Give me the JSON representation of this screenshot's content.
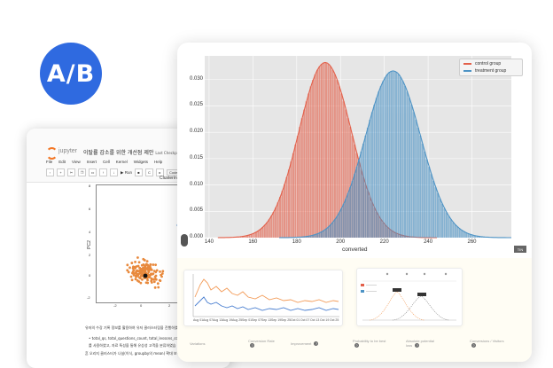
{
  "badge": {
    "text": "A/B",
    "color": "#2f6ae0"
  },
  "notebook": {
    "brand": "jupyter",
    "title": "이탈률 감소를 위한 개선점 제안",
    "checkpoint": "Last Checkpoint: 지난",
    "menu": [
      "File",
      "Edit",
      "View",
      "Insert",
      "Cell",
      "Kernel",
      "Widgets",
      "Help"
    ],
    "run_label": "Run",
    "cell_type": "Code",
    "plot_title": "Clusterin",
    "y_axis_label": "PC2",
    "y_ticks": [
      "8",
      "6",
      "4",
      "2",
      "0",
      "-2"
    ],
    "x_ticks": [
      "-2",
      "0",
      "2"
    ],
    "text_lines": [
      "유저의 수강 기록 정보를 활용하여 유저 클러스터링을 진행하였",
      "• total_qs, total_questions_count, total_lessons_coun",
      "   를 사용하였고, 자료 특성을 통해 유상성 고객을 분류하였습",
      "흔 오리지 클러스터가 나뉨(이식, groupby의 mean) 확대 보정"
    ],
    "accent_color": "#f37726"
  },
  "dashboard": {
    "legend": [
      {
        "name": "control group",
        "color": "#e3604a"
      },
      {
        "name": "treatment group",
        "color": "#4d93c5"
      }
    ],
    "corner_badge": "TIN",
    "mini_chart_x_ticks": [
      "Aug 01",
      "Aug 07",
      "Aug 13",
      "Aug 19",
      "Aug 25",
      "Sep 01",
      "Sep 07",
      "Sep 13",
      "Sep 19",
      "Sep 25",
      "Oct 01",
      "Oct 07",
      "Oct 13",
      "Oct 19",
      "Oct 25"
    ],
    "table_headers": [
      "Variations",
      "Conversion Rate",
      "Improvement",
      "Probability to be best",
      "Absolute potential loss",
      "Conversions / Visitors"
    ]
  },
  "chart_data": {
    "type": "bar",
    "title": "",
    "xlabel": "converted",
    "ylabel": "",
    "xlim": [
      138,
      278
    ],
    "ylim": [
      0,
      0.0345
    ],
    "x_ticks": [
      140,
      160,
      180,
      200,
      220,
      240,
      260
    ],
    "y_ticks": [
      0.0,
      0.005,
      0.01,
      0.015,
      0.02,
      0.025,
      0.03
    ],
    "grid": true,
    "legend_position": "top-right",
    "series": [
      {
        "name": "control group",
        "distribution": "normal",
        "mean": 193,
        "std": 12,
        "range": [
          150,
          238
        ],
        "color": "#e3604a"
      },
      {
        "name": "treatment group",
        "distribution": "normal",
        "mean": 224,
        "std": 12.6,
        "range": [
          178,
          272
        ],
        "color": "#4d93c5"
      }
    ]
  }
}
